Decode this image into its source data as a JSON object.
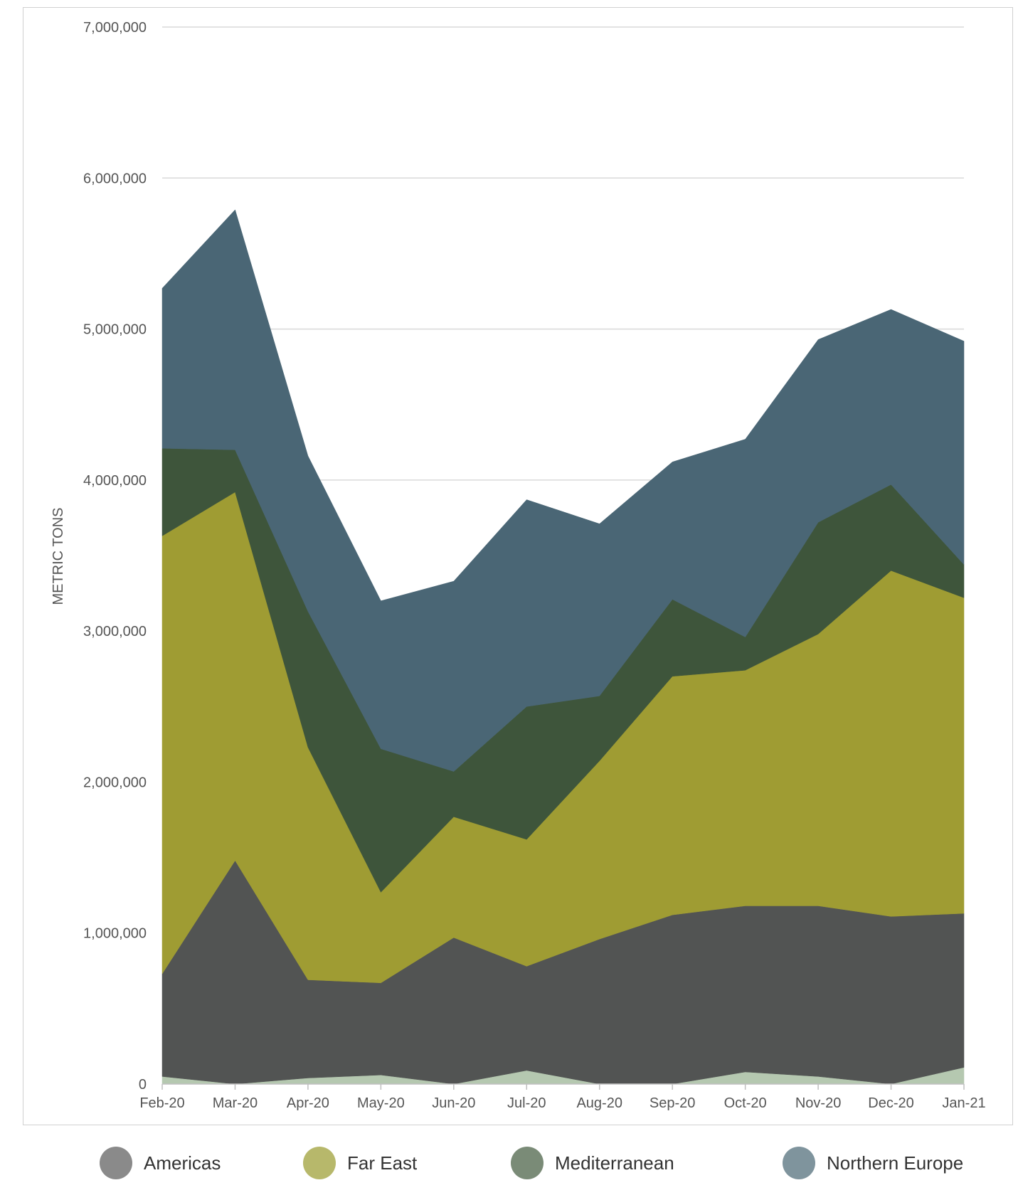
{
  "chart_data": {
    "type": "area",
    "stacked": true,
    "title": "",
    "xlabel": "",
    "ylabel": "METRIC TONS",
    "ylim": [
      0,
      7000000
    ],
    "yticks": [
      0,
      1000000,
      2000000,
      3000000,
      4000000,
      5000000,
      6000000,
      7000000
    ],
    "ytick_labels": [
      "0",
      "1,000,000",
      "2,000,000",
      "3,000,000",
      "4,000,000",
      "5,000,000",
      "6,000,000",
      "7,000,000"
    ],
    "categories": [
      "Feb-20",
      "Mar-20",
      "Apr-20",
      "May-20",
      "Jun-20",
      "Jul-20",
      "Aug-20",
      "Sep-20",
      "Oct-20",
      "Nov-20",
      "Dec-20",
      "Jan-21"
    ],
    "grid": "horizontal",
    "legend_position": "bottom",
    "series": [
      {
        "name": "",
        "color": "#b5c8b0",
        "values": [
          50000,
          0,
          40000,
          60000,
          0,
          90000,
          0,
          0,
          80000,
          50000,
          0,
          110000
        ]
      },
      {
        "name": "Americas",
        "color": "#525453",
        "values": [
          680000,
          1480000,
          650000,
          610000,
          970000,
          690000,
          960000,
          1120000,
          1100000,
          1130000,
          1110000,
          1020000
        ]
      },
      {
        "name": "Far East",
        "color": "#9f9c33",
        "values": [
          2900000,
          2440000,
          1540000,
          600000,
          800000,
          840000,
          1180000,
          1580000,
          1560000,
          1800000,
          2290000,
          2090000
        ]
      },
      {
        "name": "Mediterranean",
        "color": "#3e553b",
        "values": [
          580000,
          280000,
          900000,
          950000,
          300000,
          880000,
          430000,
          510000,
          220000,
          740000,
          570000,
          220000
        ]
      },
      {
        "name": "Northern Europe",
        "color": "#4a6675",
        "values": [
          1060000,
          1590000,
          1030000,
          980000,
          1260000,
          1370000,
          1140000,
          910000,
          1310000,
          1210000,
          1160000,
          1480000
        ]
      }
    ]
  },
  "legend": {
    "items": [
      {
        "label": "Americas",
        "color": "#8a8a8a"
      },
      {
        "label": "Far East",
        "color": "#b7b86b"
      },
      {
        "label": "Mediterranean",
        "color": "#7a8b77"
      },
      {
        "label": "Northern Europe",
        "color": "#7f949d"
      }
    ]
  }
}
